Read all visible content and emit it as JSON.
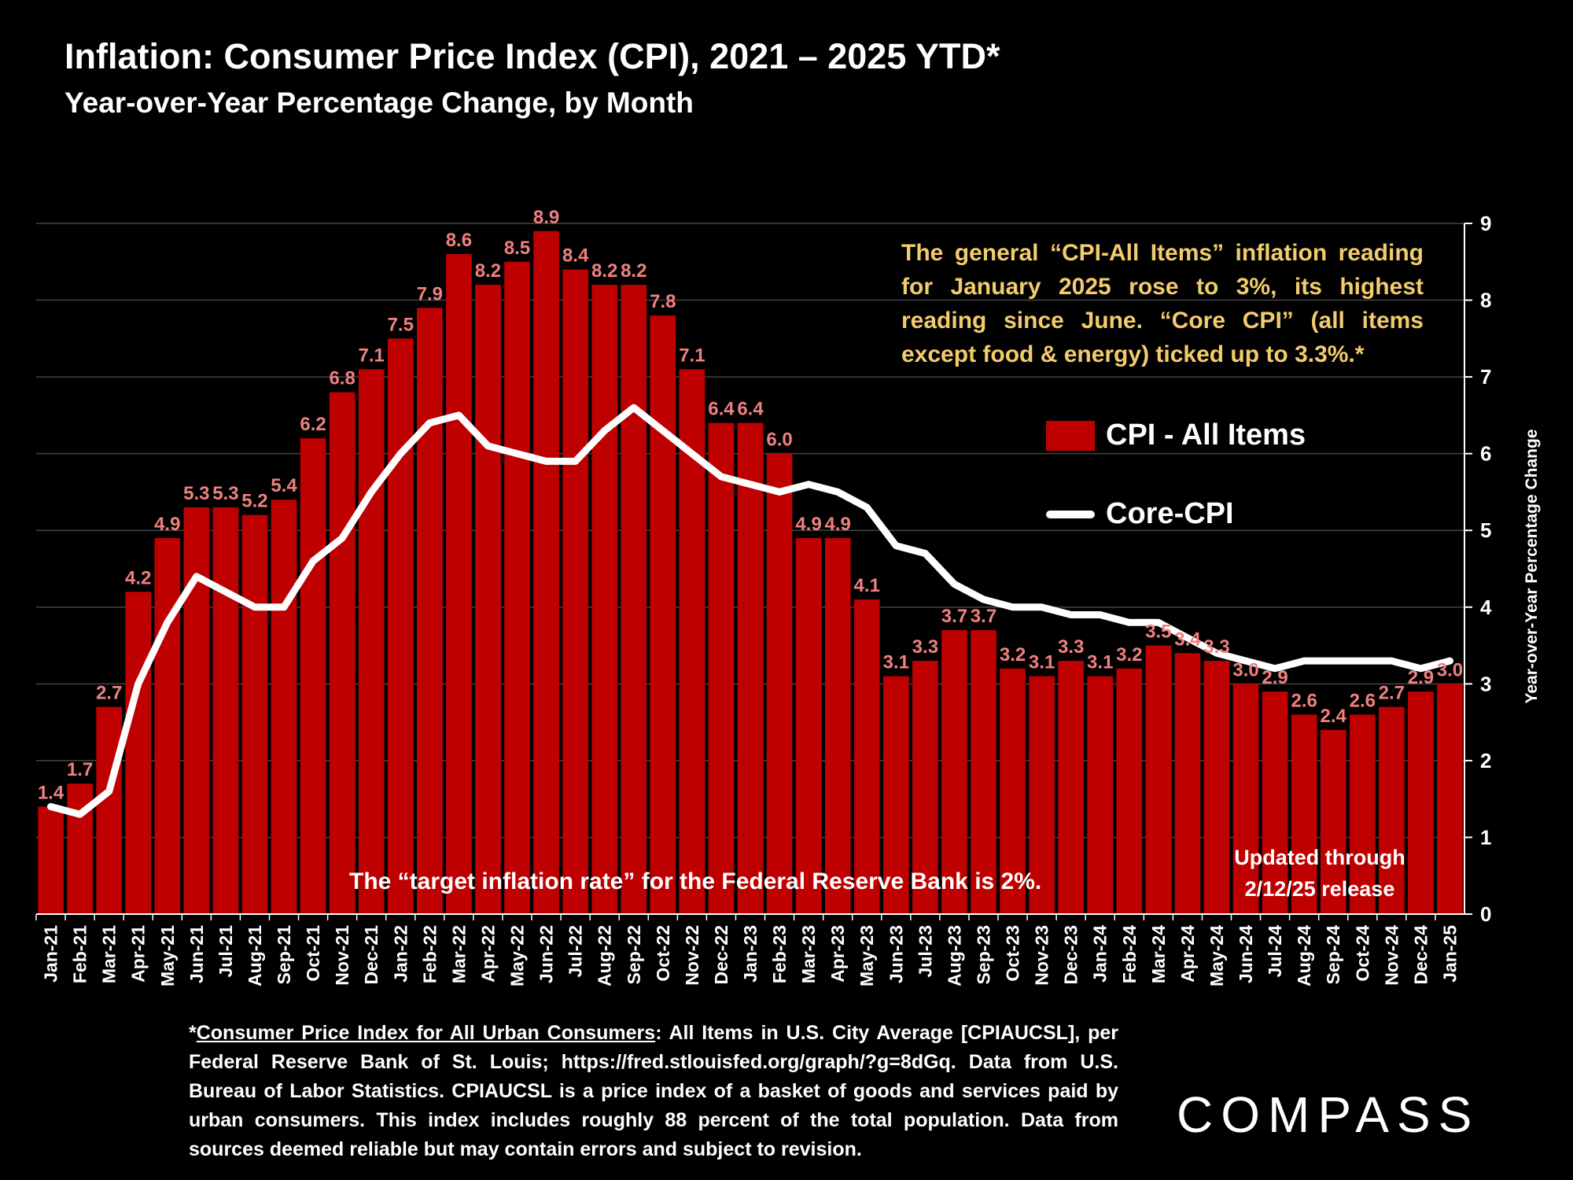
{
  "title": "Inflation: Consumer Price Index (CPI), 2021 – 2025 YTD*",
  "subtitle": "Year-over-Year Percentage Change, by Month",
  "callout": "The general “CPI-All Items” inflation reading for January 2025 rose to 3%, its highest reading since June. “Core CPI” (all items except food & energy) ticked up to 3.3%.*",
  "fed_note": "The “target inflation rate” for the Federal Reserve Bank is 2%.",
  "updated_note": [
    "Updated through",
    "2/12/25 release"
  ],
  "footnote": {
    "star": "*",
    "link_text": "Consumer Price Index for All Urban Consumers",
    "body": ": All Items in U.S. City Average [CPIAUCSL], per Federal Reserve Bank of St. Louis; https://fred.stlouisfed.org/graph/?g=8dGq. Data from U.S. Bureau of Labor Statistics. CPIAUCSL is a price index of a basket of goods and services paid by urban consumers. This index includes roughly 88 percent of the total population. Data from sources deemed reliable but may contain errors and subject to revision."
  },
  "logo": "COMPASS",
  "colors": {
    "bar": "#bf0000",
    "bar_label": "#f08080",
    "core_line": "#ffffff",
    "callout": "#f2cc6d",
    "grid": "#444444"
  },
  "chart_data": {
    "type": "bar",
    "ylabel": "Year-over-Year Percentage Change",
    "ylim": [
      0,
      9
    ],
    "yticks": [
      0,
      1,
      2,
      3,
      4,
      5,
      6,
      7,
      8,
      9
    ],
    "y_axis_side": "right",
    "grid": true,
    "legend_placement": "right, below callout",
    "categories": [
      "Jan-21",
      "Feb-21",
      "Mar-21",
      "Apr-21",
      "May-21",
      "Jun-21",
      "Jul-21",
      "Aug-21",
      "Sep-21",
      "Oct-21",
      "Nov-21",
      "Dec-21",
      "Jan-22",
      "Feb-22",
      "Mar-22",
      "Apr-22",
      "May-22",
      "Jun-22",
      "Jul-22",
      "Aug-22",
      "Sep-22",
      "Oct-22",
      "Nov-22",
      "Dec-22",
      "Jan-23",
      "Feb-23",
      "Mar-23",
      "Apr-23",
      "May-23",
      "Jun-23",
      "Jul-23",
      "Aug-23",
      "Sep-23",
      "Oct-23",
      "Nov-23",
      "Dec-23",
      "Jan-24",
      "Feb-24",
      "Mar-24",
      "Apr-24",
      "May-24",
      "Jun-24",
      "Jul-24",
      "Aug-24",
      "Sep-24",
      "Oct-24",
      "Nov-24",
      "Dec-24",
      "Jan-25"
    ],
    "series": [
      {
        "name": "CPI - All Items",
        "type": "bar",
        "values": [
          1.4,
          1.7,
          2.7,
          4.2,
          4.9,
          5.3,
          5.3,
          5.2,
          5.4,
          6.2,
          6.8,
          7.1,
          7.5,
          7.9,
          8.6,
          8.2,
          8.5,
          8.9,
          8.4,
          8.2,
          8.2,
          7.8,
          7.1,
          6.4,
          6.4,
          6.0,
          4.9,
          4.9,
          4.1,
          3.1,
          3.3,
          3.7,
          3.7,
          3.2,
          3.1,
          3.3,
          3.1,
          3.2,
          3.5,
          3.4,
          3.3,
          3.0,
          2.9,
          2.6,
          2.4,
          2.6,
          2.7,
          2.9,
          3.0
        ],
        "labels": [
          "1.4",
          "1.7",
          "2.7",
          "4.2",
          "4.9",
          "5.3",
          "5.3",
          "5.2",
          "5.4",
          "6.2",
          "6.8",
          "7.1",
          "7.5",
          "7.9",
          "8.6",
          "8.2",
          "8.5",
          "8.9",
          "8.4",
          "8.2",
          "8.2",
          "7.8",
          "7.1",
          "6.4",
          "6.4",
          "6.0",
          "4.9",
          "4.9",
          "4.1",
          "3.1",
          "3.3",
          "3.7",
          "3.7",
          "3.2",
          "3.1",
          "3.3",
          "3.1",
          "3.2",
          "3.5",
          "3.4",
          "3.3",
          "3.0",
          "2.9",
          "2.6",
          "2.4",
          "2.6",
          "2.7",
          "2.9",
          "3.0"
        ]
      },
      {
        "name": "Core-CPI",
        "type": "line",
        "values": [
          1.4,
          1.3,
          1.6,
          3.0,
          3.8,
          4.4,
          4.2,
          4.0,
          4.0,
          4.6,
          4.9,
          5.5,
          6.0,
          6.4,
          6.5,
          6.1,
          6.0,
          5.9,
          5.9,
          6.3,
          6.6,
          6.3,
          6.0,
          5.7,
          5.6,
          5.5,
          5.6,
          5.5,
          5.3,
          4.8,
          4.7,
          4.3,
          4.1,
          4.0,
          4.0,
          3.9,
          3.9,
          3.8,
          3.8,
          3.6,
          3.4,
          3.3,
          3.2,
          3.3,
          3.3,
          3.3,
          3.3,
          3.2,
          3.3
        ]
      }
    ]
  }
}
